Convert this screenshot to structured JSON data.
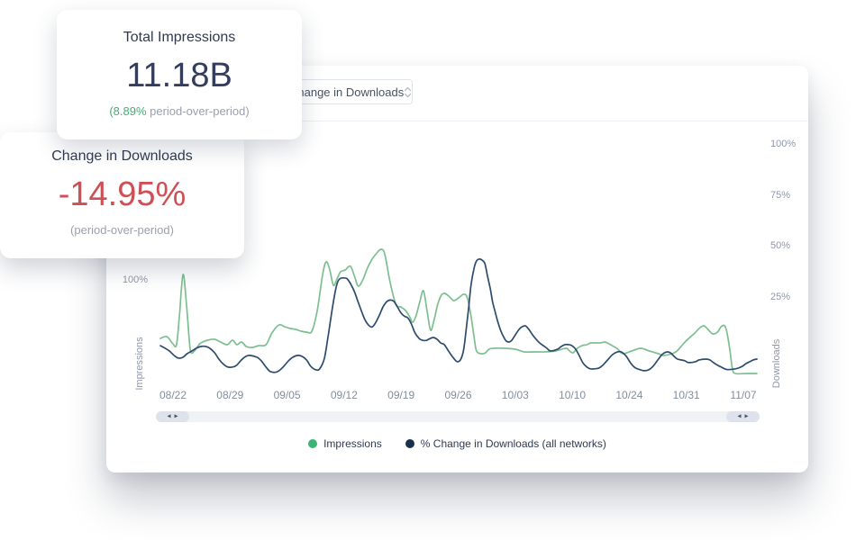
{
  "cards": {
    "impressions": {
      "title": "Total Impressions",
      "value": "11.18B",
      "delta_highlight": "(8.89%",
      "delta_rest": " period-over-period)"
    },
    "downloads": {
      "title": "Change in Downloads",
      "value": "-14.95%",
      "subtitle": "(period-over-period)"
    }
  },
  "toolbar": {
    "metric_dropdown": {
      "value": "Change in Downloads"
    }
  },
  "icons": {
    "scroll_left": "◂",
    "scroll_right": "▸"
  },
  "colors": {
    "impressions_line": "#7cbf90",
    "downloads_line": "#2d4c6d",
    "impressions_dot": "#3cb473",
    "downloads_dot": "#16304e",
    "positive_text": "#43ae77",
    "negative_text": "#cf4f56"
  },
  "legend": [
    {
      "label": "Impressions",
      "color": "#3cb473"
    },
    {
      "label": "% Change in Downloads (all networks)",
      "color": "#16304e"
    }
  ],
  "chart_data": {
    "type": "line",
    "x_ticks": [
      "08/22",
      "08/29",
      "09/05",
      "09/12",
      "09/19",
      "09/26",
      "10/03",
      "10/10",
      "10/24",
      "10/31",
      "11/07"
    ],
    "left_axis": {
      "title": "Impressions",
      "ticks": [
        {
          "label": "100%",
          "value": 100
        }
      ]
    },
    "right_axis": {
      "title": "Downloads",
      "ticks": [
        {
          "label": "100%",
          "value": 100
        },
        {
          "label": "75%",
          "value": 75
        },
        {
          "label": "50%",
          "value": 50
        },
        {
          "label": "25%",
          "value": 25
        }
      ]
    },
    "series": [
      {
        "name": "Impressions",
        "axis": "left",
        "color": "#7cbf90",
        "points": [
          [
            0,
            14.7
          ],
          [
            1.1,
            17.3
          ],
          [
            2.1,
            6.7
          ],
          [
            2.7,
            5.3
          ],
          [
            3.2,
            49.3
          ],
          [
            3.8,
            109.3
          ],
          [
            4.4,
            62.7
          ],
          [
            5,
            -1.3
          ],
          [
            5.7,
            -4
          ],
          [
            6.6,
            6.7
          ],
          [
            7.9,
            12
          ],
          [
            9.1,
            13.3
          ],
          [
            10.1,
            9.3
          ],
          [
            11.2,
            5.3
          ],
          [
            12.1,
            12
          ],
          [
            12.8,
            5.3
          ],
          [
            13.6,
            9.3
          ],
          [
            14.4,
            2.7
          ],
          [
            15.4,
            1.3
          ],
          [
            16.5,
            4
          ],
          [
            17.7,
            5.3
          ],
          [
            18.7,
            22.7
          ],
          [
            19.9,
            34.7
          ],
          [
            20.8,
            32
          ],
          [
            21.8,
            29.3
          ],
          [
            22.7,
            28
          ],
          [
            23.6,
            25.3
          ],
          [
            24.5,
            24
          ],
          [
            25.4,
            25.3
          ],
          [
            26.3,
            56
          ],
          [
            27.2,
            109.3
          ],
          [
            27.8,
            128
          ],
          [
            28.4,
            116
          ],
          [
            29,
            93.3
          ],
          [
            29.6,
            102.7
          ],
          [
            30.2,
            113.3
          ],
          [
            31,
            116
          ],
          [
            31.6,
            121.3
          ],
          [
            32,
            120
          ],
          [
            32.6,
            105.3
          ],
          [
            33.2,
            92
          ],
          [
            34,
            102.7
          ],
          [
            34.7,
            118.7
          ],
          [
            35.5,
            132
          ],
          [
            36.3,
            141.3
          ],
          [
            37,
            146.7
          ],
          [
            37.6,
            140
          ],
          [
            38.4,
            102.7
          ],
          [
            39.1,
            76
          ],
          [
            39.6,
            62.7
          ],
          [
            40.3,
            61.3
          ],
          [
            41.1,
            56
          ],
          [
            41.8,
            46.7
          ],
          [
            42.3,
            38.7
          ],
          [
            42.9,
            49.3
          ],
          [
            43.5,
            69.3
          ],
          [
            44.1,
            85.3
          ],
          [
            44.7,
            56
          ],
          [
            45.3,
            26.7
          ],
          [
            45.9,
            42.7
          ],
          [
            46.5,
            65.3
          ],
          [
            47.1,
            78.7
          ],
          [
            47.7,
            81.3
          ],
          [
            48.5,
            76
          ],
          [
            49.2,
            70.7
          ],
          [
            50,
            74.7
          ],
          [
            50.8,
            80
          ],
          [
            51.4,
            76
          ],
          [
            52,
            52
          ],
          [
            52.6,
            16
          ],
          [
            53,
            -4
          ],
          [
            53.8,
            -8
          ],
          [
            54.5,
            -6.7
          ],
          [
            55.1,
            -1.3
          ],
          [
            55.9,
            0
          ],
          [
            57.7,
            0
          ],
          [
            59.5,
            -1.3
          ],
          [
            61,
            -5.3
          ],
          [
            62.5,
            -5.3
          ],
          [
            64.4,
            -5.3
          ],
          [
            66.2,
            -4
          ],
          [
            68,
            0
          ],
          [
            68.6,
            -4
          ],
          [
            69.2,
            -6.7
          ],
          [
            69.9,
            0
          ],
          [
            70.7,
            4
          ],
          [
            71.5,
            5.3
          ],
          [
            72.2,
            8
          ],
          [
            73.7,
            8
          ],
          [
            74.5,
            9.3
          ],
          [
            75.2,
            6.7
          ],
          [
            76,
            2.7
          ],
          [
            76.7,
            -1.3
          ],
          [
            77.5,
            -8
          ],
          [
            79,
            -4
          ],
          [
            80.5,
            0
          ],
          [
            82,
            -4
          ],
          [
            83.5,
            -8
          ],
          [
            84.3,
            -10.7
          ],
          [
            85.8,
            -8
          ],
          [
            86.6,
            -4
          ],
          [
            87.3,
            2.7
          ],
          [
            88.1,
            10.7
          ],
          [
            89.6,
            22.7
          ],
          [
            90.3,
            29.3
          ],
          [
            91.1,
            33.3
          ],
          [
            91.8,
            28
          ],
          [
            92.6,
            21.3
          ],
          [
            93.4,
            24
          ],
          [
            94,
            32
          ],
          [
            94.6,
            33.3
          ],
          [
            95,
            22.7
          ],
          [
            95.5,
            -4
          ],
          [
            95.9,
            -30.7
          ],
          [
            96.4,
            -37.3
          ],
          [
            98.2,
            -37.3
          ],
          [
            100,
            -37.3
          ]
        ]
      },
      {
        "name": "% Change in Downloads (all networks)",
        "axis": "right",
        "color": "#2d4c6d",
        "points": [
          [
            0,
            1.3
          ],
          [
            0.8,
            0
          ],
          [
            1.5,
            -1.3
          ],
          [
            2.3,
            -3.5
          ],
          [
            3,
            -4.8
          ],
          [
            3.8,
            -4.4
          ],
          [
            4.5,
            -2.6
          ],
          [
            5.3,
            -1.3
          ],
          [
            6,
            0
          ],
          [
            6.8,
            0.9
          ],
          [
            7.6,
            0.9
          ],
          [
            8.3,
            0
          ],
          [
            9.1,
            -2.2
          ],
          [
            9.8,
            -5.3
          ],
          [
            10.6,
            -7.9
          ],
          [
            11.3,
            -9.2
          ],
          [
            12.1,
            -9.2
          ],
          [
            12.8,
            -8.3
          ],
          [
            13.6,
            -5.7
          ],
          [
            14.4,
            -3.9
          ],
          [
            15,
            -3.5
          ],
          [
            16.2,
            -4.4
          ],
          [
            16.9,
            -6.1
          ],
          [
            17.7,
            -9.2
          ],
          [
            18.4,
            -11.4
          ],
          [
            19.2,
            -11.8
          ],
          [
            19.9,
            -11
          ],
          [
            20.7,
            -8.8
          ],
          [
            21.5,
            -6.1
          ],
          [
            22.2,
            -4.4
          ],
          [
            23,
            -3.5
          ],
          [
            23.7,
            -3.9
          ],
          [
            24.5,
            -5.7
          ],
          [
            25.2,
            -8.8
          ],
          [
            26,
            -10.5
          ],
          [
            26.7,
            -10.1
          ],
          [
            27.5,
            -4.8
          ],
          [
            28.2,
            7.5
          ],
          [
            29,
            22.8
          ],
          [
            29.6,
            31.6
          ],
          [
            30.1,
            34.2
          ],
          [
            30.7,
            34.6
          ],
          [
            31.3,
            34.2
          ],
          [
            31.9,
            31.6
          ],
          [
            32.5,
            28.1
          ],
          [
            33.1,
            23.2
          ],
          [
            33.7,
            18.4
          ],
          [
            34.3,
            14
          ],
          [
            34.9,
            11.4
          ],
          [
            35.5,
            10.5
          ],
          [
            36.1,
            12.7
          ],
          [
            36.7,
            16.2
          ],
          [
            37.3,
            20.2
          ],
          [
            37.9,
            22.8
          ],
          [
            38.5,
            23.7
          ],
          [
            39.1,
            23.2
          ],
          [
            39.7,
            20.6
          ],
          [
            40.3,
            17.5
          ],
          [
            40.9,
            15.8
          ],
          [
            41.5,
            14.9
          ],
          [
            42.1,
            11.8
          ],
          [
            42.7,
            7.5
          ],
          [
            43.4,
            4.8
          ],
          [
            44,
            3.9
          ],
          [
            44.6,
            3.9
          ],
          [
            45.2,
            4.8
          ],
          [
            45.8,
            5.3
          ],
          [
            46.4,
            4.4
          ],
          [
            47,
            2.6
          ],
          [
            47.6,
            1.8
          ],
          [
            48.2,
            -0.9
          ],
          [
            48.8,
            -3.5
          ],
          [
            49.4,
            -5.7
          ],
          [
            49.8,
            -6.6
          ],
          [
            50.3,
            -5.7
          ],
          [
            50.8,
            -1.3
          ],
          [
            51.2,
            7.5
          ],
          [
            51.7,
            20.6
          ],
          [
            52.1,
            31.6
          ],
          [
            52.6,
            39.5
          ],
          [
            53,
            43
          ],
          [
            53.5,
            43.9
          ],
          [
            53.9,
            43.4
          ],
          [
            54.4,
            41.7
          ],
          [
            54.8,
            36
          ],
          [
            55.3,
            29.4
          ],
          [
            55.7,
            22.8
          ],
          [
            56.2,
            17.1
          ],
          [
            56.6,
            12.7
          ],
          [
            57.1,
            8.3
          ],
          [
            57.6,
            5.3
          ],
          [
            58,
            3.5
          ],
          [
            58.5,
            3.1
          ],
          [
            58.9,
            3.9
          ],
          [
            59.4,
            6.1
          ],
          [
            60,
            8.8
          ],
          [
            60.6,
            10.5
          ],
          [
            61.2,
            11
          ],
          [
            61.8,
            9.2
          ],
          [
            62.4,
            6.6
          ],
          [
            63,
            4.4
          ],
          [
            63.6,
            2.6
          ],
          [
            64.2,
            1.3
          ],
          [
            64.8,
            0
          ],
          [
            65.4,
            -1.3
          ],
          [
            66.6,
            -0.4
          ],
          [
            67.2,
            0.9
          ],
          [
            67.8,
            1.8
          ],
          [
            68.4,
            1.8
          ],
          [
            69,
            1.3
          ],
          [
            69.6,
            -0.4
          ],
          [
            70.2,
            -3.5
          ],
          [
            70.8,
            -7
          ],
          [
            71.5,
            -9.2
          ],
          [
            72.1,
            -10.1
          ],
          [
            72.8,
            -10.1
          ],
          [
            73.6,
            -9.6
          ],
          [
            74.3,
            -7.9
          ],
          [
            75.1,
            -5.3
          ],
          [
            75.8,
            -3.1
          ],
          [
            76.6,
            -1.8
          ],
          [
            77.3,
            -1.8
          ],
          [
            78.1,
            -3.9
          ],
          [
            78.9,
            -7.5
          ],
          [
            79.6,
            -9.6
          ],
          [
            80.4,
            -10.5
          ],
          [
            81.1,
            -11
          ],
          [
            81.9,
            -10.5
          ],
          [
            82.6,
            -8.8
          ],
          [
            83.4,
            -5.7
          ],
          [
            84.1,
            -3.1
          ],
          [
            84.9,
            -1.8
          ],
          [
            85.5,
            -2.2
          ],
          [
            86.1,
            -3.9
          ],
          [
            86.7,
            -5.3
          ],
          [
            87.9,
            -6.1
          ],
          [
            88.5,
            -7
          ],
          [
            89.7,
            -6.6
          ],
          [
            90.3,
            -5.7
          ],
          [
            91.5,
            -5.3
          ],
          [
            92.1,
            -5.7
          ],
          [
            92.7,
            -7
          ],
          [
            93.4,
            -8.3
          ],
          [
            94,
            -9.2
          ],
          [
            94.6,
            -10.1
          ],
          [
            95.2,
            -10.5
          ],
          [
            96.4,
            -10.1
          ],
          [
            97,
            -9.6
          ],
          [
            97.6,
            -8.8
          ],
          [
            98.2,
            -7.5
          ],
          [
            98.8,
            -6.6
          ],
          [
            99.4,
            -5.7
          ],
          [
            100,
            -5.3
          ]
        ]
      }
    ]
  }
}
